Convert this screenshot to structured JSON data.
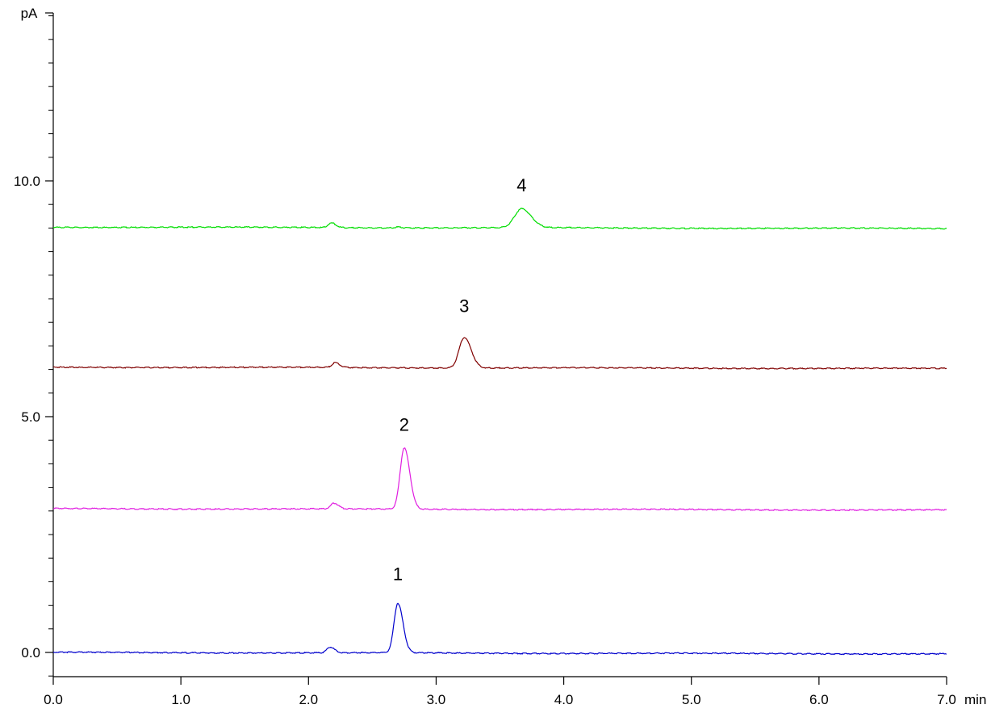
{
  "chart_data": {
    "type": "line",
    "xlabel": "min",
    "ylabel": "pA",
    "xlim": [
      0,
      7
    ],
    "ylim": [
      -0.5,
      14
    ],
    "x_ticks": [
      {
        "value": 0,
        "label": "0.0"
      },
      {
        "value": 1,
        "label": "1.0"
      },
      {
        "value": 2,
        "label": "2.0"
      },
      {
        "value": 3,
        "label": "3.0"
      },
      {
        "value": 4,
        "label": "4.0"
      },
      {
        "value": 5,
        "label": "5.0"
      },
      {
        "value": 6,
        "label": "6.0"
      },
      {
        "value": 7,
        "label": "7.0"
      }
    ],
    "y_ticks": [
      {
        "value": 0,
        "label": "0.0"
      },
      {
        "value": 5,
        "label": "5.0"
      },
      {
        "value": 10,
        "label": "10.0"
      }
    ],
    "y_minor_step": 0.5,
    "x_range": [
      0,
      7
    ],
    "series": [
      {
        "color": "#0000cc",
        "baseline": 0.0,
        "peaks": [
          {
            "rt": 2.17,
            "height": 0.12,
            "width": 0.025
          },
          {
            "rt": 2.7,
            "height": 1.05,
            "width": 0.03
          }
        ]
      },
      {
        "color": "#e01ee0",
        "baseline": 3.05,
        "peaks": [
          {
            "rt": 2.2,
            "height": 0.12,
            "width": 0.025
          },
          {
            "rt": 2.75,
            "height": 1.3,
            "width": 0.032
          }
        ]
      },
      {
        "color": "#800000",
        "baseline": 6.05,
        "peaks": [
          {
            "rt": 2.21,
            "height": 0.1,
            "width": 0.025
          },
          {
            "rt": 3.22,
            "height": 0.65,
            "width": 0.04
          }
        ]
      },
      {
        "color": "#00dd00",
        "baseline": 9.02,
        "peaks": [
          {
            "rt": 2.18,
            "height": 0.1,
            "width": 0.025
          },
          {
            "rt": 2.7,
            "height": 0.02,
            "width": 0.02
          },
          {
            "rt": 3.67,
            "height": 0.4,
            "width": 0.055
          }
        ]
      }
    ],
    "annotations": [
      {
        "text": "1",
        "x": 2.7,
        "y": 1.53
      },
      {
        "text": "2",
        "x": 2.75,
        "y": 4.7
      },
      {
        "text": "3",
        "x": 3.22,
        "y": 7.22
      },
      {
        "text": "4",
        "x": 3.67,
        "y": 9.78
      }
    ]
  }
}
